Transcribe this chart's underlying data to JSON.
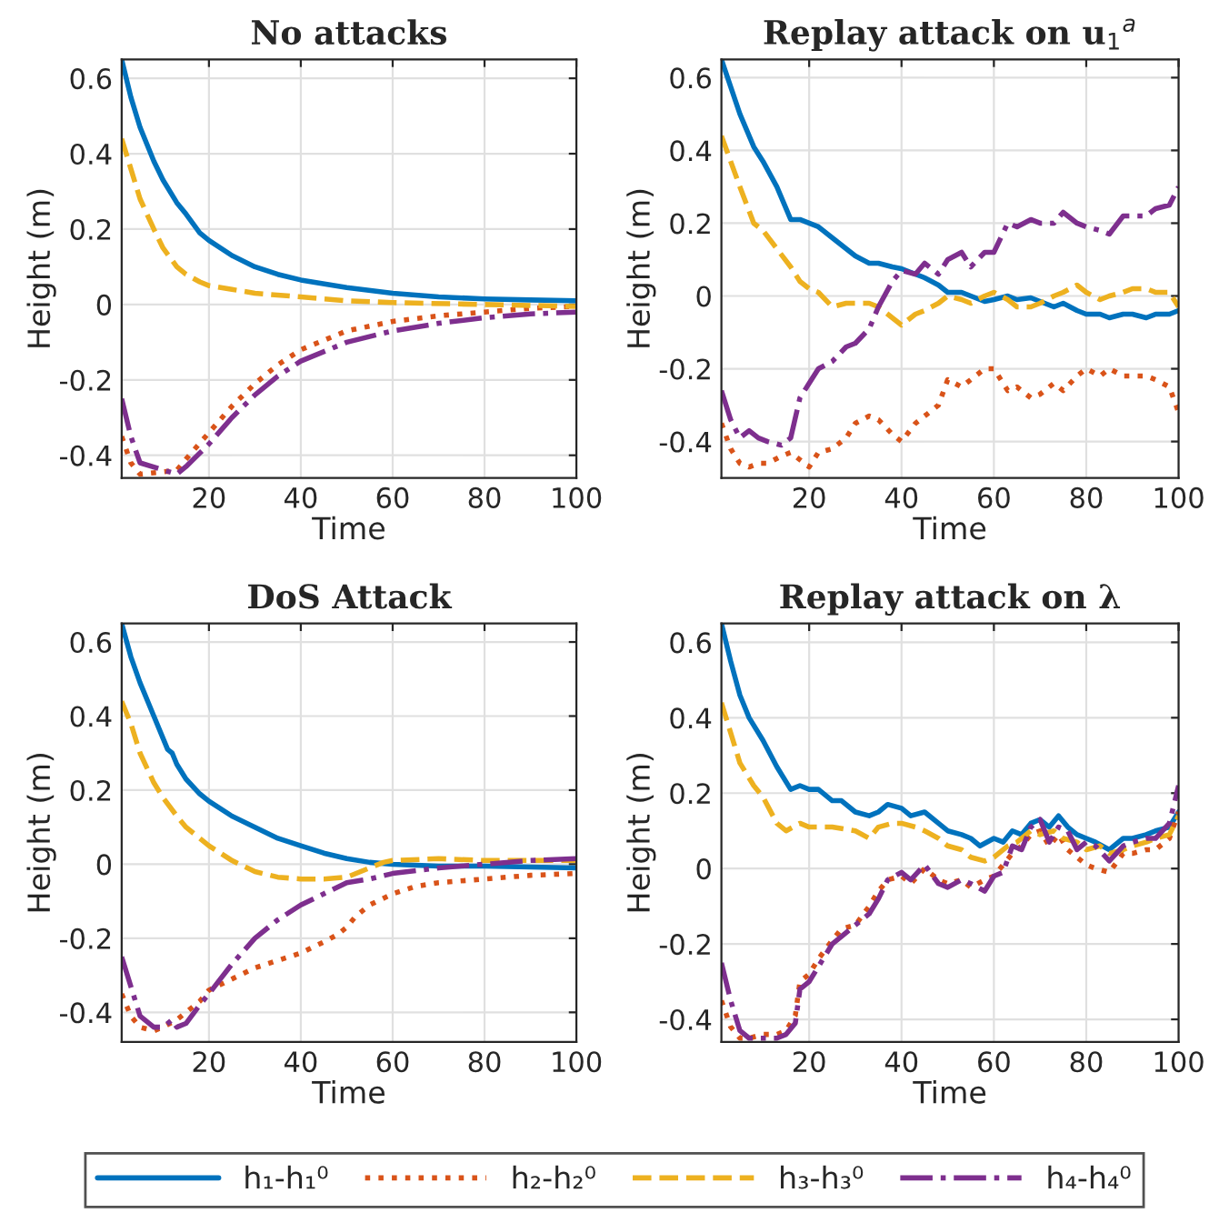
{
  "chart_data": [
    {
      "type": "line",
      "title": "No attacks",
      "xlabel": "Time",
      "ylabel": "Height (m)",
      "xlim": [
        1,
        100
      ],
      "ylim": [
        -0.46,
        0.65
      ],
      "xticks": [
        20,
        40,
        60,
        80,
        100
      ],
      "yticks": [
        -0.4,
        -0.2,
        0,
        0.2,
        0.4,
        0.6
      ],
      "grid": true,
      "series": [
        {
          "color": "#0072bd",
          "line_style": "solid",
          "x": [
            1,
            3,
            5,
            8,
            10,
            13,
            15,
            18,
            20,
            25,
            30,
            35,
            40,
            50,
            60,
            70,
            80,
            90,
            100
          ],
          "values": [
            0.65,
            0.55,
            0.47,
            0.38,
            0.33,
            0.27,
            0.24,
            0.19,
            0.17,
            0.13,
            0.1,
            0.08,
            0.065,
            0.045,
            0.03,
            0.02,
            0.015,
            0.012,
            0.01
          ]
        },
        {
          "color": "#d95319",
          "line_style": "dotted",
          "x": [
            1,
            3,
            5,
            8,
            10,
            13,
            15,
            20,
            25,
            30,
            35,
            40,
            50,
            60,
            70,
            80,
            90,
            100
          ],
          "values": [
            -0.35,
            -0.42,
            -0.45,
            null,
            null,
            -0.44,
            -0.41,
            -0.34,
            -0.27,
            -0.21,
            -0.16,
            -0.12,
            -0.07,
            -0.045,
            -0.03,
            -0.02,
            -0.01,
            -0.005
          ]
        },
        {
          "color": "#edb120",
          "line_style": "dashed",
          "x": [
            1,
            3,
            5,
            8,
            10,
            13,
            15,
            18,
            20,
            25,
            30,
            40,
            50,
            60,
            80,
            100
          ],
          "values": [
            0.44,
            0.36,
            0.28,
            0.2,
            0.15,
            0.1,
            0.08,
            0.06,
            0.05,
            0.04,
            0.03,
            0.02,
            0.01,
            0.005,
            0,
            -0.005
          ]
        },
        {
          "color": "#7e2f8e",
          "line_style": "dashdot",
          "x": [
            1,
            3,
            5,
            8,
            10,
            13,
            15,
            20,
            25,
            30,
            35,
            40,
            50,
            60,
            70,
            80,
            90,
            100
          ],
          "values": [
            -0.25,
            -0.35,
            -0.42,
            null,
            null,
            -0.45,
            -0.43,
            -0.37,
            -0.3,
            -0.24,
            -0.19,
            -0.15,
            -0.1,
            -0.07,
            -0.05,
            -0.035,
            -0.025,
            -0.02
          ]
        }
      ]
    },
    {
      "type": "line",
      "title": "Replay attack on u$_{1}$$^{a}$",
      "xlabel": "Time",
      "ylabel": "Height (m)",
      "xlim": [
        1,
        100
      ],
      "ylim": [
        -0.5,
        0.65
      ],
      "xticks": [
        20,
        40,
        60,
        80,
        100
      ],
      "yticks": [
        -0.4,
        -0.2,
        0,
        0.2,
        0.4,
        0.6
      ],
      "grid": true,
      "series": [
        {
          "color": "#0072bd",
          "line_style": "solid",
          "x": [
            1,
            5,
            8,
            10,
            13,
            16,
            18,
            20,
            22,
            25,
            28,
            30,
            33,
            35,
            38,
            40,
            43,
            45,
            48,
            50,
            53,
            55,
            58,
            60,
            63,
            65,
            68,
            70,
            73,
            75,
            78,
            80,
            83,
            85,
            88,
            90,
            93,
            95,
            98,
            100
          ],
          "values": [
            0.65,
            0.5,
            0.41,
            0.37,
            0.3,
            0.21,
            0.21,
            0.2,
            0.19,
            0.16,
            0.13,
            0.11,
            0.09,
            0.09,
            0.08,
            0.075,
            0.06,
            0.05,
            0.03,
            0.01,
            0.01,
            0,
            -0.015,
            -0.01,
            0,
            -0.01,
            -0.005,
            -0.015,
            -0.03,
            -0.02,
            -0.04,
            -0.05,
            -0.05,
            -0.06,
            -0.05,
            -0.05,
            -0.06,
            -0.05,
            -0.05,
            -0.04
          ]
        },
        {
          "color": "#d95319",
          "line_style": "dotted",
          "x": [
            1,
            3,
            5,
            7,
            9,
            11,
            14,
            16,
            18,
            20,
            22,
            25,
            28,
            30,
            33,
            35,
            38,
            40,
            43,
            45,
            48,
            50,
            53,
            55,
            58,
            60,
            63,
            65,
            68,
            70,
            73,
            75,
            78,
            80,
            83,
            85,
            88,
            90,
            93,
            95,
            98,
            100
          ],
          "values": [
            -0.35,
            -0.42,
            -0.46,
            -0.47,
            -0.46,
            -0.46,
            -0.44,
            -0.43,
            -0.45,
            -0.47,
            -0.43,
            -0.42,
            -0.39,
            -0.35,
            -0.33,
            -0.34,
            -0.38,
            -0.4,
            -0.35,
            -0.33,
            -0.3,
            -0.23,
            -0.25,
            -0.23,
            -0.2,
            -0.2,
            -0.26,
            -0.25,
            -0.28,
            -0.27,
            -0.24,
            -0.26,
            -0.22,
            -0.2,
            -0.22,
            -0.2,
            -0.22,
            -0.22,
            -0.22,
            -0.23,
            -0.25,
            -0.32
          ]
        },
        {
          "color": "#edb120",
          "line_style": "dashed",
          "x": [
            1,
            5,
            8,
            10,
            13,
            16,
            18,
            20,
            22,
            25,
            28,
            30,
            33,
            35,
            38,
            40,
            43,
            45,
            48,
            50,
            53,
            55,
            58,
            60,
            63,
            65,
            68,
            70,
            73,
            75,
            78,
            80,
            83,
            85,
            88,
            90,
            93,
            95,
            98,
            100
          ],
          "values": [
            0.44,
            0.3,
            0.2,
            0.18,
            0.13,
            0.08,
            0.04,
            0.02,
            0.01,
            -0.03,
            -0.02,
            -0.02,
            -0.02,
            -0.03,
            -0.06,
            -0.08,
            -0.05,
            -0.04,
            -0.02,
            0,
            -0.01,
            -0.02,
            0,
            0.01,
            -0.01,
            -0.03,
            -0.03,
            -0.02,
            0,
            0.01,
            0.03,
            0.01,
            -0.01,
            0,
            0.01,
            0.02,
            0.02,
            0.01,
            0.01,
            -0.03
          ]
        },
        {
          "color": "#7e2f8e",
          "line_style": "dashdot",
          "x": [
            1,
            3,
            5,
            7,
            9,
            11,
            14,
            16,
            18,
            20,
            22,
            25,
            28,
            30,
            33,
            35,
            38,
            40,
            43,
            45,
            48,
            50,
            53,
            55,
            58,
            60,
            63,
            65,
            68,
            70,
            73,
            75,
            78,
            80,
            83,
            85,
            88,
            90,
            93,
            95,
            98,
            100
          ],
          "values": [
            -0.26,
            -0.34,
            -0.39,
            -0.37,
            -0.39,
            -0.4,
            -0.41,
            -0.39,
            -0.28,
            -0.24,
            -0.2,
            -0.18,
            -0.14,
            -0.13,
            -0.09,
            -0.03,
            0.04,
            0.07,
            0.06,
            0.09,
            0.06,
            0.1,
            0.12,
            0.08,
            0.12,
            0.12,
            0.2,
            0.19,
            0.21,
            0.2,
            0.2,
            0.23,
            0.2,
            0.19,
            0.18,
            0.17,
            0.22,
            0.22,
            0.22,
            0.24,
            0.25,
            0.3
          ]
        }
      ]
    },
    {
      "type": "line",
      "title": "DoS Attack",
      "xlabel": "Time",
      "ylabel": "Height (m)",
      "xlim": [
        1,
        100
      ],
      "ylim": [
        -0.48,
        0.65
      ],
      "xticks": [
        20,
        40,
        60,
        80,
        100
      ],
      "yticks": [
        -0.4,
        -0.2,
        0,
        0.2,
        0.4,
        0.6
      ],
      "grid": true,
      "series": [
        {
          "color": "#0072bd",
          "line_style": "solid",
          "x": [
            1,
            3,
            5,
            8,
            10,
            11,
            12,
            13,
            15,
            18,
            20,
            25,
            30,
            35,
            40,
            45,
            50,
            55,
            60,
            70,
            80,
            100
          ],
          "values": [
            0.65,
            0.56,
            0.49,
            0.4,
            0.34,
            0.31,
            0.3,
            0.27,
            0.23,
            0.19,
            0.17,
            0.13,
            0.1,
            0.07,
            0.05,
            0.03,
            0.015,
            0.005,
            0,
            -0.005,
            -0.005,
            -0.01
          ]
        },
        {
          "color": "#d95319",
          "line_style": "dotted",
          "x": [
            1,
            3,
            5,
            8,
            10,
            13,
            15,
            18,
            20,
            25,
            30,
            35,
            40,
            45,
            48,
            50,
            52,
            55,
            60,
            65,
            70,
            80,
            90,
            100
          ],
          "values": [
            -0.35,
            -0.41,
            -0.44,
            -0.45,
            -0.44,
            -0.42,
            -0.4,
            -0.37,
            -0.34,
            -0.31,
            -0.28,
            -0.26,
            -0.24,
            -0.21,
            -0.19,
            -0.17,
            -0.14,
            -0.11,
            -0.08,
            -0.06,
            -0.05,
            -0.04,
            -0.03,
            -0.025
          ]
        },
        {
          "color": "#edb120",
          "line_style": "dashed",
          "x": [
            1,
            3,
            5,
            8,
            10,
            13,
            15,
            18,
            20,
            25,
            30,
            35,
            40,
            45,
            50,
            55,
            58,
            60,
            70,
            80,
            100
          ],
          "values": [
            0.44,
            0.38,
            0.3,
            0.22,
            0.18,
            0.13,
            0.1,
            0.07,
            0.05,
            0.01,
            -0.02,
            -0.035,
            -0.04,
            -0.04,
            -0.035,
            -0.01,
            0.005,
            0.01,
            0.015,
            0.01,
            0.01
          ]
        },
        {
          "color": "#7e2f8e",
          "line_style": "dashdot",
          "x": [
            1,
            3,
            5,
            8,
            10,
            11,
            12,
            13,
            15,
            18,
            20,
            25,
            30,
            35,
            40,
            45,
            50,
            55,
            60,
            70,
            80,
            90,
            100
          ],
          "values": [
            -0.25,
            -0.33,
            -0.41,
            -0.44,
            -0.44,
            -0.43,
            -0.42,
            -0.44,
            -0.43,
            -0.38,
            -0.35,
            -0.27,
            -0.2,
            -0.15,
            -0.11,
            -0.08,
            -0.05,
            -0.04,
            -0.025,
            -0.01,
            0,
            0.01,
            0.015
          ]
        }
      ]
    },
    {
      "type": "line",
      "title": "Replay attack on λ",
      "xlabel": "Time",
      "ylabel": "Height (m)",
      "xlim": [
        1,
        100
      ],
      "ylim": [
        -0.46,
        0.65
      ],
      "xticks": [
        20,
        40,
        60,
        80,
        100
      ],
      "yticks": [
        -0.4,
        -0.2,
        0,
        0.2,
        0.4,
        0.6
      ],
      "grid": true,
      "legend": "bottom",
      "series": [
        {
          "name": "h₁-h₁⁰",
          "color": "#0072bd",
          "line_style": "solid",
          "x": [
            1,
            3,
            5,
            7,
            10,
            13,
            16,
            18,
            20,
            22,
            25,
            27,
            30,
            33,
            35,
            37,
            40,
            42,
            45,
            48,
            50,
            53,
            55,
            57,
            60,
            62,
            64,
            66,
            68,
            70,
            72,
            74,
            76,
            78,
            80,
            82,
            85,
            88,
            90,
            93,
            95,
            98,
            100
          ],
          "values": [
            0.65,
            0.55,
            0.46,
            0.4,
            0.34,
            0.27,
            0.21,
            0.22,
            0.21,
            0.21,
            0.18,
            0.18,
            0.15,
            0.14,
            0.15,
            0.17,
            0.16,
            0.14,
            0.15,
            0.12,
            0.1,
            0.09,
            0.08,
            0.06,
            0.08,
            0.07,
            0.1,
            0.09,
            0.12,
            0.13,
            0.11,
            0.14,
            0.11,
            0.09,
            0.08,
            0.07,
            0.05,
            0.08,
            0.08,
            0.09,
            0.1,
            0.11,
            0.15
          ]
        },
        {
          "name": "h₂-h₂⁰",
          "color": "#d95319",
          "line_style": "dotted",
          "x": [
            1,
            3,
            5,
            7,
            10,
            13,
            15,
            17,
            18,
            20,
            22,
            25,
            27,
            30,
            33,
            35,
            37,
            40,
            42,
            45,
            48,
            50,
            53,
            55,
            58,
            60,
            62,
            64,
            66,
            68,
            70,
            72,
            74,
            76,
            78,
            80,
            82,
            85,
            88,
            90,
            93,
            95,
            98,
            100
          ],
          "values": [
            -0.35,
            -0.42,
            -0.45,
            -0.45,
            -0.44,
            -0.44,
            -0.43,
            -0.39,
            -0.3,
            -0.28,
            -0.24,
            -0.19,
            -0.16,
            -0.15,
            -0.1,
            -0.06,
            -0.03,
            -0.02,
            -0.04,
            0,
            -0.03,
            -0.04,
            -0.03,
            -0.05,
            -0.03,
            -0.02,
            0.01,
            0.04,
            0.06,
            0.09,
            0.1,
            0.06,
            0.09,
            0.05,
            0.03,
            0.01,
            0,
            -0.01,
            0.04,
            0.04,
            0.05,
            0.05,
            0.08,
            0.15
          ]
        },
        {
          "name": "h₃-h₃⁰",
          "color": "#edb120",
          "line_style": "dashed",
          "x": [
            1,
            3,
            5,
            8,
            10,
            13,
            15,
            18,
            20,
            25,
            30,
            33,
            35,
            38,
            40,
            43,
            45,
            48,
            50,
            53,
            55,
            58,
            60,
            63,
            65,
            68,
            70,
            73,
            75,
            78,
            80,
            83,
            85,
            88,
            90,
            93,
            95,
            98,
            100
          ],
          "values": [
            0.44,
            0.36,
            0.28,
            0.22,
            0.19,
            0.12,
            0.1,
            0.12,
            0.11,
            0.11,
            0.1,
            0.08,
            0.11,
            0.12,
            0.12,
            0.11,
            0.1,
            0.08,
            0.06,
            0.05,
            0.03,
            0.02,
            0.03,
            0.06,
            0.07,
            0.1,
            0.09,
            0.1,
            0.08,
            0.07,
            0.05,
            0.06,
            0.04,
            0.05,
            0.06,
            0.07,
            0.08,
            0.09,
            0.14
          ]
        },
        {
          "name": "h₄-h₄⁰",
          "color": "#7e2f8e",
          "line_style": "dashdot",
          "x": [
            1,
            3,
            5,
            7,
            10,
            13,
            15,
            17,
            18,
            20,
            22,
            25,
            27,
            30,
            33,
            35,
            37,
            40,
            42,
            45,
            48,
            50,
            53,
            55,
            58,
            60,
            62,
            64,
            66,
            68,
            70,
            72,
            74,
            76,
            78,
            80,
            82,
            85,
            88,
            90,
            93,
            95,
            98,
            100
          ],
          "values": [
            -0.25,
            -0.35,
            -0.43,
            -0.45,
            -0.45,
            -0.45,
            -0.44,
            -0.41,
            -0.32,
            -0.3,
            -0.26,
            -0.2,
            -0.18,
            -0.15,
            -0.12,
            -0.08,
            -0.03,
            -0.01,
            -0.03,
            0.01,
            -0.04,
            -0.05,
            -0.03,
            -0.04,
            -0.06,
            -0.02,
            -0.01,
            0.06,
            0.05,
            0.11,
            0.13,
            0.07,
            0.11,
            0.1,
            0.05,
            0.07,
            0.06,
            0.02,
            0.06,
            0.07,
            0.08,
            0.08,
            0.12,
            0.22
          ]
        }
      ]
    }
  ]
}
